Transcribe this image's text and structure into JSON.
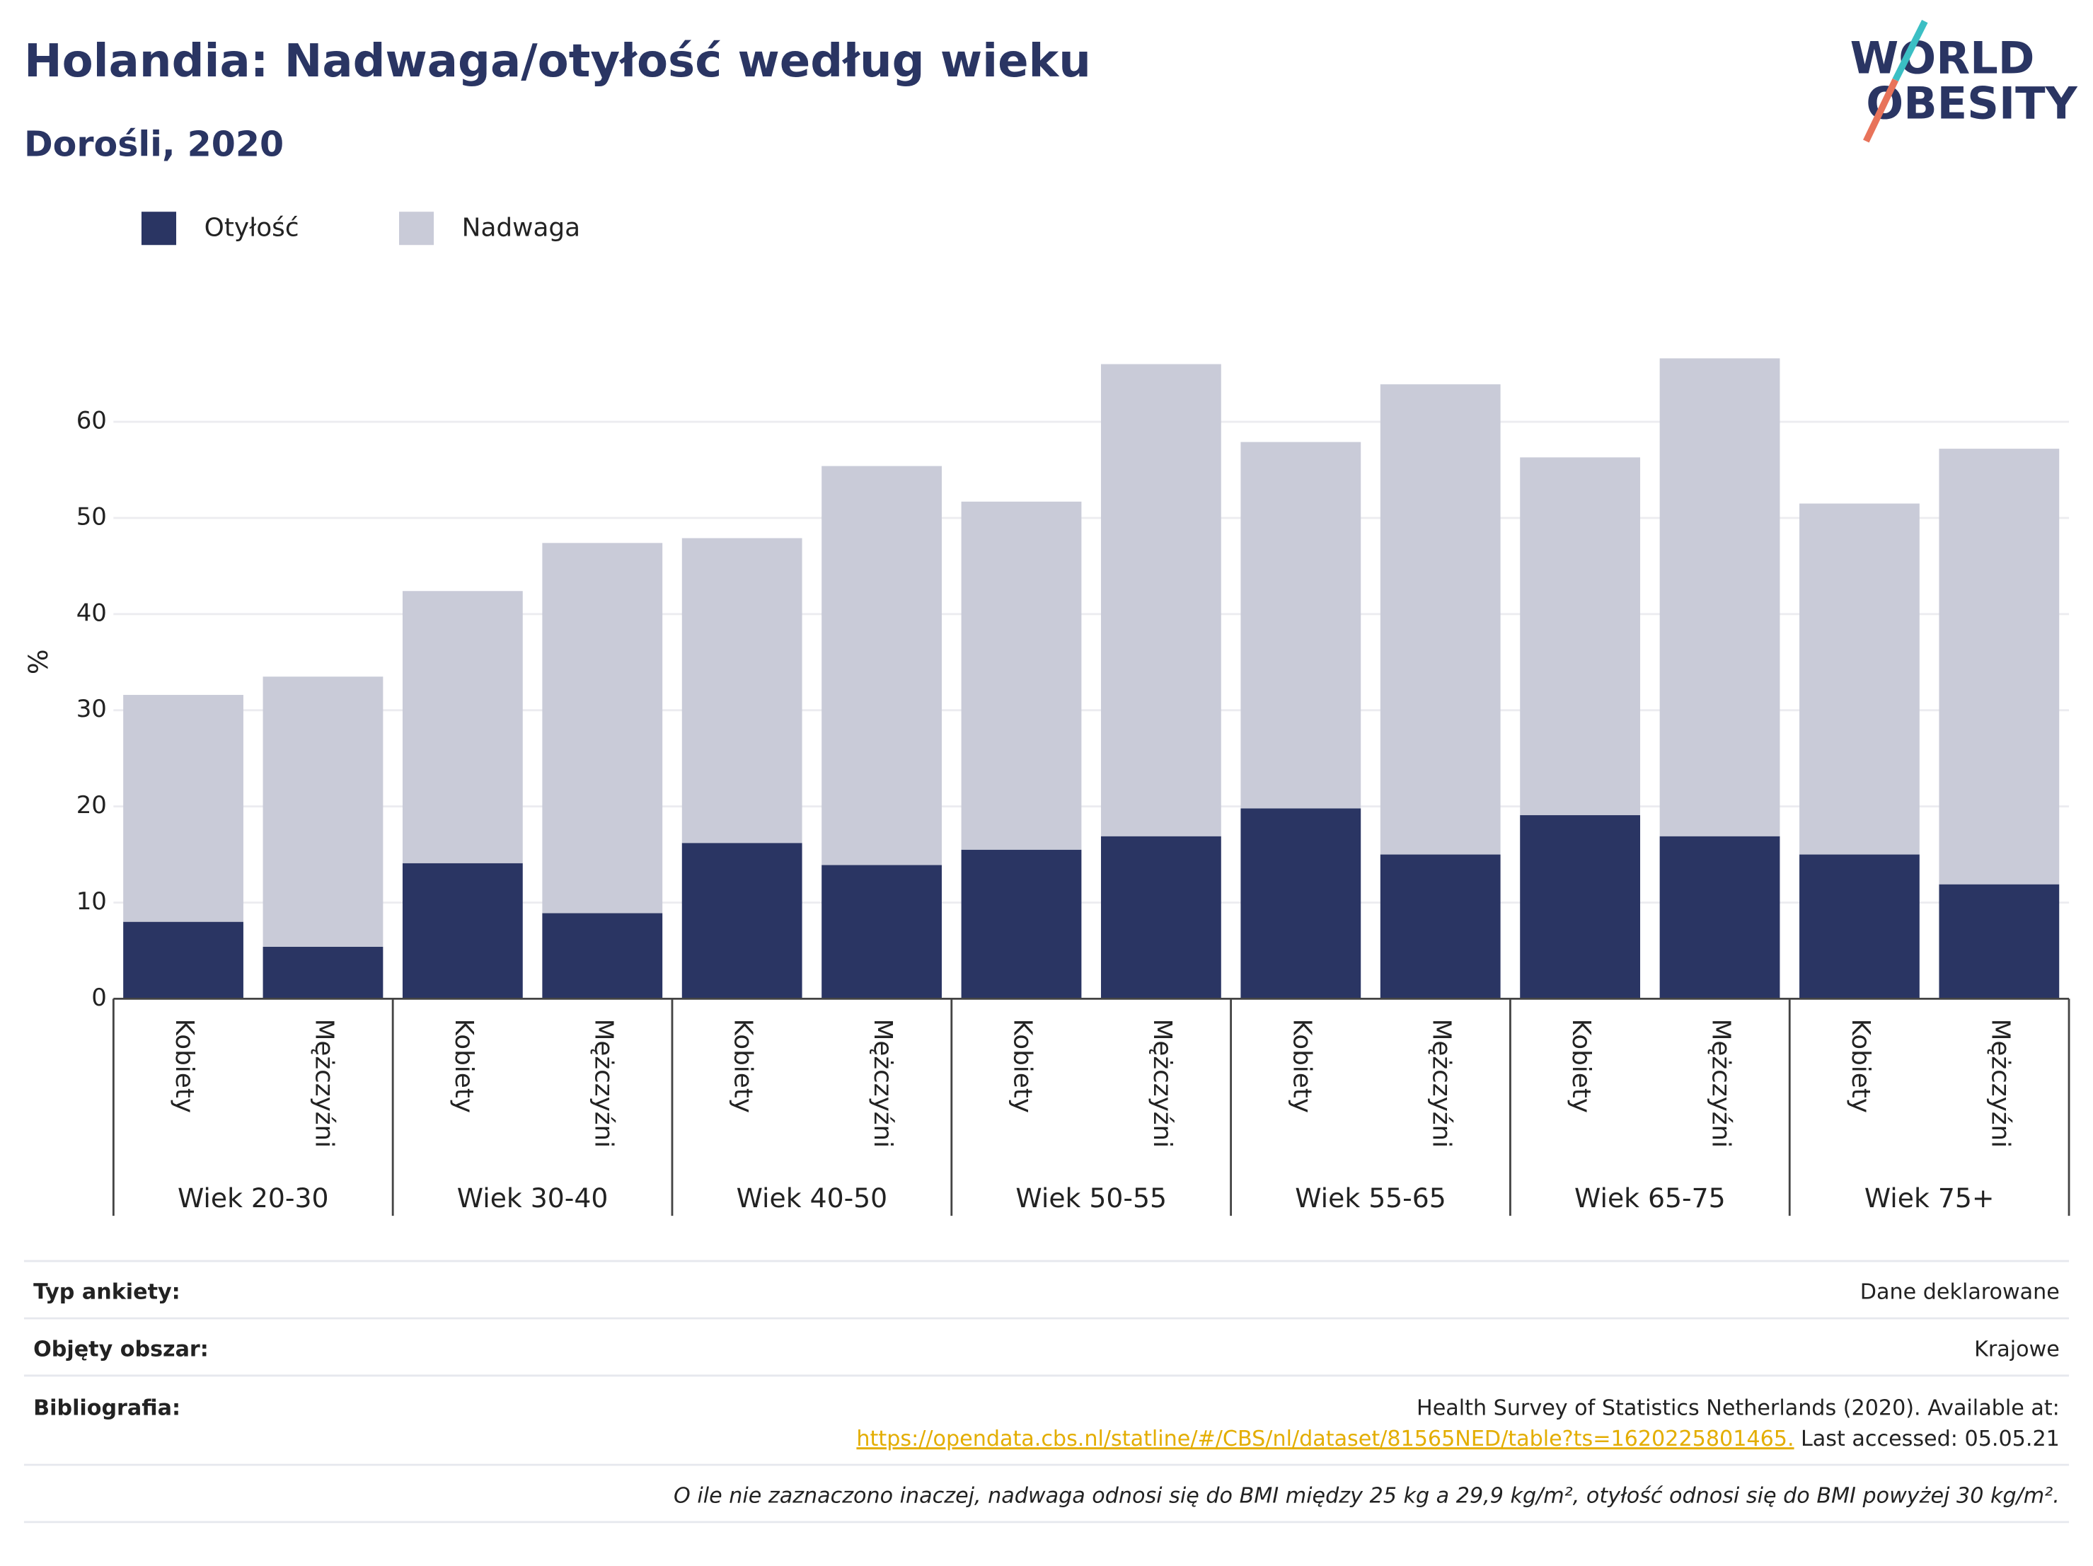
{
  "chart_data": {
    "type": "stacked_bar",
    "title": "Holandia: Nadwaga/otyłość według wieku",
    "subtitle": "Dorośli, 2020",
    "y_label": "%",
    "categories": [
      "Kobiety",
      "Mężczyźni",
      "Kobiety",
      "Mężczyźni",
      "Kobiety",
      "Mężczyźni",
      "Kobiety",
      "Mężczyźni",
      "Kobiety",
      "Mężczyźni",
      "Kobiety",
      "Mężczyźni",
      "Kobiety",
      "Mężczyźni"
    ],
    "groups": [
      "Wiek 20-30",
      "Wiek 30-40",
      "Wiek 40-50",
      "Wiek 50-55",
      "Wiek 55-65",
      "Wiek 65-75",
      "Wiek 75+"
    ],
    "series": [
      {
        "name": "Otyłość",
        "color": "#2a3563",
        "values": [
          8.0,
          5.4,
          14.1,
          8.9,
          16.2,
          13.9,
          15.5,
          16.9,
          19.8,
          15.0,
          19.1,
          16.9,
          15.0,
          11.9
        ]
      },
      {
        "name": "Nadwaga",
        "color": "#c9cbd8",
        "values": [
          23.6,
          28.1,
          28.3,
          38.5,
          31.7,
          41.5,
          36.2,
          49.1,
          38.1,
          48.9,
          37.2,
          49.7,
          36.5,
          45.3
        ]
      }
    ],
    "ylim": [
      0,
      68
    ],
    "yticks": [
      0,
      10,
      20,
      30,
      40,
      50,
      60
    ],
    "grid": true,
    "legend": "top-left"
  },
  "logo": {
    "line1": "WORLD",
    "line2": "OBESITY"
  },
  "footer": {
    "rows": [
      {
        "label": "Typ ankiety:",
        "value": "Dane deklarowane"
      },
      {
        "label": "Objęty obszar:",
        "value": "Krajowe"
      }
    ],
    "bibliography": {
      "label": "Bibliografia:",
      "line1": "Health Survey of Statistics Netherlands (2020). Available at:",
      "link": "https://opendata.cbs.nl/statline/#/CBS/nl/dataset/81565NED/table?ts=1620225801465.",
      "after": "Last accessed: 05.05.21"
    },
    "note": "O ile nie zaznaczono inaczej, nadwaga odnosi się do BMI między 25 kg a 29,9 kg/m², otyłość odnosi się do BMI powyżej 30 kg/m²."
  }
}
